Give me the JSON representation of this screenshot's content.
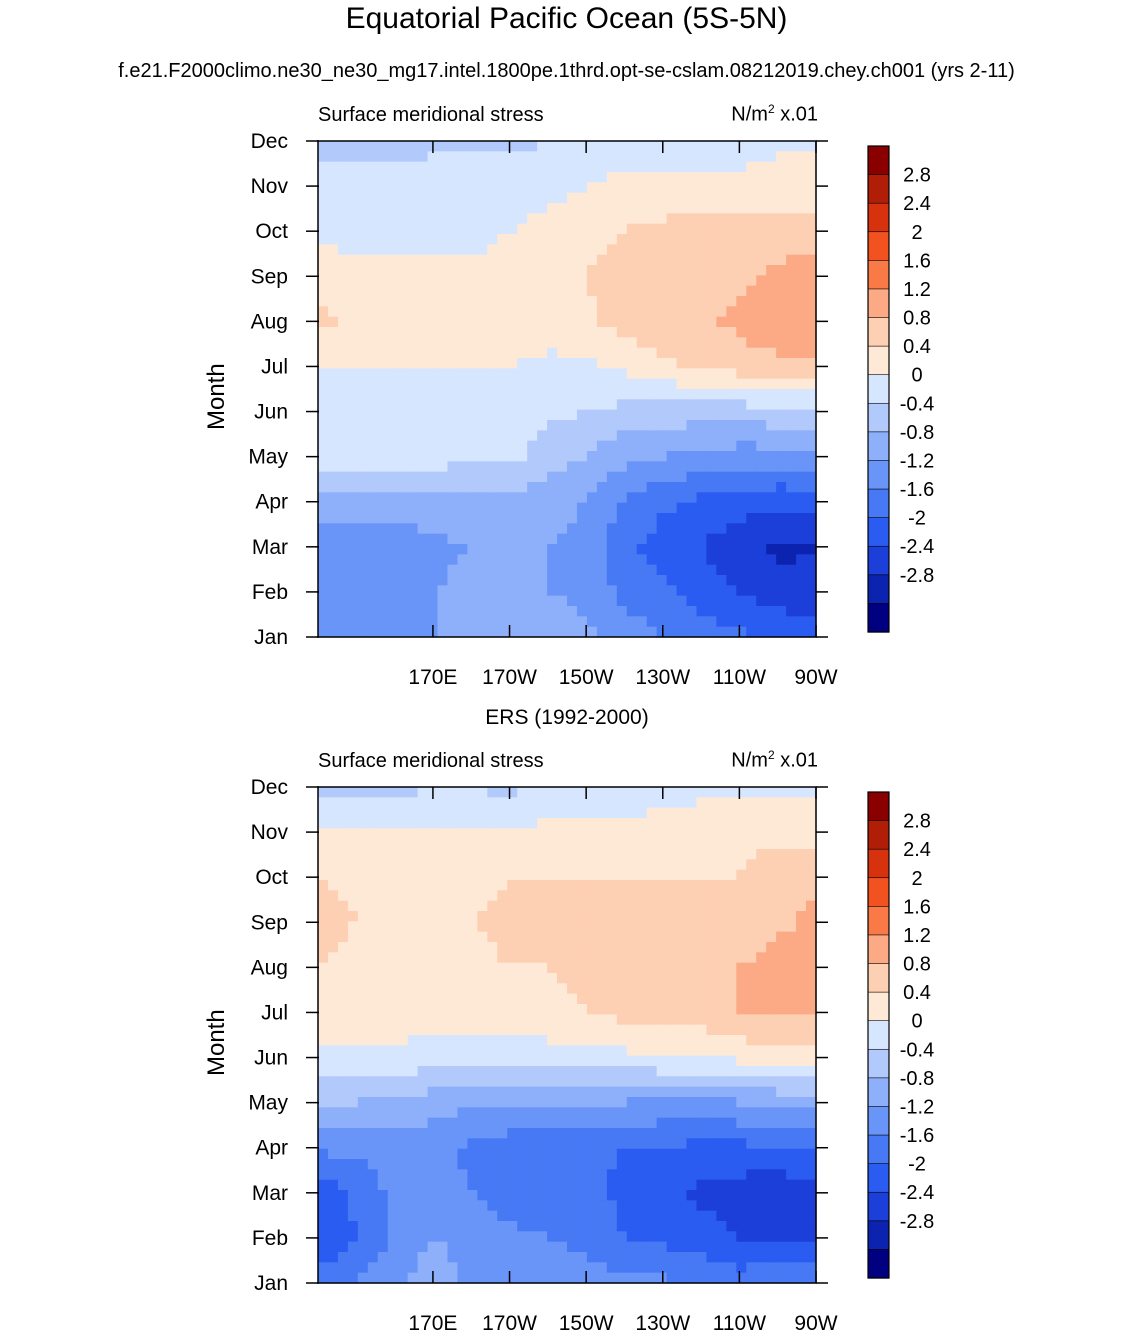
{
  "title": "Equatorial Pacific Ocean (5S-5N)",
  "subtitle": "f.e21.F2000climo.ne30_ne30_mg17.intel.1800pe.1thrd.opt-se-cslam.08212019.chey.ch001 (yrs 2-11)",
  "colors": {
    "levels": [
      "#000080",
      "#0c23b0",
      "#1b3fd8",
      "#2a5cf2",
      "#4779f5",
      "#6895f7",
      "#8eb0fa",
      "#b2c9fc",
      "#d6e6fe",
      "#fee9d7",
      "#fdcfb3",
      "#fca985",
      "#fa7a47",
      "#f2521f",
      "#d7320e",
      "#b01e08",
      "#8a0000"
    ],
    "levels_meaning": "fill colors from lowest to highest interval"
  },
  "chart_data": [
    {
      "type": "heatmap",
      "title": "",
      "panel_label": "Surface meridional stress",
      "units_text": "N/m",
      "units_sup": "2",
      "units_suffix": " x.01",
      "ylabel": "Month",
      "xlabel": "",
      "x_range_deg": [
        140,
        270
      ],
      "x_ticks": [
        "170E",
        "170W",
        "150W",
        "130W",
        "110W",
        "90W"
      ],
      "x_tick_values": [
        170,
        190,
        210,
        230,
        250,
        270
      ],
      "y_ticks": [
        "Jan",
        "Feb",
        "Mar",
        "Apr",
        "May",
        "Jun",
        "Jul",
        "Aug",
        "Sep",
        "Oct",
        "Nov",
        "Dec"
      ],
      "colorbar_labels": [
        "2.8",
        "2.4",
        "2",
        "1.6",
        "1.2",
        "0.8",
        "0.4",
        "0",
        "-0.4",
        "-0.8",
        "-1.2",
        "-1.6",
        "-2",
        "-2.4",
        "-2.8"
      ],
      "colorbar_levels": [
        -2.8,
        -2.4,
        -2,
        -1.6,
        -1.2,
        -0.8,
        -0.4,
        0,
        0.4,
        0.8,
        1.2,
        1.6,
        2,
        2.4,
        2.8
      ],
      "grid_columns_deg": [
        140,
        150,
        160,
        170,
        180,
        190,
        200,
        210,
        220,
        230,
        240,
        250,
        260,
        270
      ],
      "values": [
        [
          -1.0,
          -1.0,
          -0.9,
          -0.8,
          -0.7,
          -0.7,
          -0.6,
          -0.7,
          -1.0,
          -1.2,
          -1.4,
          -1.5,
          -1.7,
          -1.8
        ],
        [
          -1.0,
          -1.0,
          -0.9,
          -0.8,
          -0.7,
          -0.7,
          -0.8,
          -0.9,
          -1.3,
          -1.5,
          -1.8,
          -2.0,
          -2.2,
          -2.3
        ],
        [
          -1.0,
          -1.1,
          -1.0,
          -0.9,
          -0.8,
          -0.8,
          -0.8,
          -1.0,
          -1.5,
          -1.8,
          -2.0,
          -2.3,
          -2.5,
          -2.4
        ],
        [
          -0.6,
          -0.6,
          -0.6,
          -0.6,
          -0.5,
          -0.5,
          -0.6,
          -0.8,
          -1.2,
          -1.5,
          -1.7,
          -1.8,
          -1.9,
          -1.8
        ],
        [
          0.2,
          0.2,
          0.2,
          0.2,
          0.1,
          0.1,
          -0.2,
          -0.4,
          -0.7,
          -0.8,
          -0.9,
          -1.0,
          -1.0,
          -1.0
        ],
        [
          0.4,
          0.3,
          0.3,
          0.2,
          0.2,
          0.2,
          0.1,
          0.0,
          -0.1,
          -0.2,
          -0.2,
          -0.2,
          -0.1,
          -0.1
        ],
        [
          0.4,
          0.4,
          0.4,
          0.4,
          0.4,
          0.4,
          0.3,
          0.3,
          0.5,
          0.7,
          0.9,
          1.0,
          1.1,
          1.1
        ],
        [
          0.9,
          0.7,
          0.7,
          0.6,
          0.6,
          0.6,
          0.6,
          0.7,
          1.0,
          1.1,
          1.1,
          1.3,
          1.5,
          1.5
        ],
        [
          0.6,
          0.5,
          0.5,
          0.5,
          0.5,
          0.5,
          0.6,
          0.8,
          1.1,
          1.0,
          1.0,
          1.1,
          1.3,
          1.4
        ],
        [
          0.3,
          0.3,
          0.3,
          0.3,
          0.3,
          0.4,
          0.5,
          0.6,
          0.8,
          0.9,
          1.0,
          1.0,
          1.0,
          0.9
        ],
        [
          0.2,
          0.2,
          0.2,
          0.2,
          0.2,
          0.2,
          0.3,
          0.4,
          0.5,
          0.5,
          0.5,
          0.5,
          0.6,
          0.6
        ],
        [
          -0.2,
          -0.2,
          -0.2,
          -0.1,
          -0.1,
          -0.1,
          0.0,
          0.1,
          0.2,
          0.2,
          0.2,
          0.2,
          0.3,
          0.3
        ]
      ]
    },
    {
      "type": "heatmap",
      "title": "ERS (1992-2000)",
      "panel_label": "Surface meridional stress",
      "units_text": "N/m",
      "units_sup": "2",
      "units_suffix": " x.01",
      "ylabel": "Month",
      "xlabel": "",
      "x_range_deg": [
        140,
        270
      ],
      "x_ticks": [
        "170E",
        "170W",
        "150W",
        "130W",
        "110W",
        "90W"
      ],
      "x_tick_values": [
        170,
        190,
        210,
        230,
        250,
        270
      ],
      "y_ticks": [
        "Jan",
        "Feb",
        "Mar",
        "Apr",
        "May",
        "Jun",
        "Jul",
        "Aug",
        "Sep",
        "Oct",
        "Nov",
        "Dec"
      ],
      "colorbar_labels": [
        "2.8",
        "2.4",
        "2",
        "1.6",
        "1.2",
        "0.8",
        "0.4",
        "0",
        "-0.4",
        "-0.8",
        "-1.2",
        "-1.6",
        "-2",
        "-2.4",
        "-2.8"
      ],
      "colorbar_levels": [
        -2.8,
        -2.4,
        -2,
        -1.6,
        -1.2,
        -0.8,
        -0.4,
        0,
        0.4,
        0.8,
        1.2,
        1.6,
        2,
        2.4,
        2.8
      ],
      "grid_columns_deg": [
        140,
        150,
        160,
        170,
        180,
        190,
        200,
        210,
        220,
        230,
        240,
        250,
        260,
        270
      ],
      "values": [
        [
          -1.5,
          -1.2,
          -0.9,
          -0.6,
          -0.9,
          -1.0,
          -0.9,
          -1.0,
          -1.1,
          -1.1,
          -1.3,
          -1.4,
          -1.3,
          -1.2
        ],
        [
          -1.9,
          -1.6,
          -1.1,
          -0.8,
          -0.9,
          -1.1,
          -1.2,
          -1.3,
          -1.6,
          -1.7,
          -1.8,
          -2.0,
          -2.1,
          -2.1
        ],
        [
          -2.0,
          -1.5,
          -1.1,
          -1.0,
          -1.2,
          -1.4,
          -1.4,
          -1.5,
          -1.7,
          -1.9,
          -2.1,
          -2.2,
          -2.3,
          -2.2
        ],
        [
          -1.1,
          -1.1,
          -1.0,
          -1.1,
          -1.3,
          -1.4,
          -1.4,
          -1.5,
          -1.6,
          -1.6,
          -1.7,
          -1.7,
          -1.6,
          -1.5
        ],
        [
          -0.3,
          -0.4,
          -0.5,
          -0.6,
          -0.7,
          -0.8,
          -0.8,
          -0.7,
          -0.8,
          -0.9,
          -0.9,
          -0.8,
          -0.7,
          -0.6
        ],
        [
          0.3,
          0.3,
          0.3,
          0.2,
          0.2,
          0.2,
          0.2,
          0.3,
          0.3,
          0.4,
          0.4,
          0.5,
          0.6,
          0.6
        ],
        [
          0.7,
          0.6,
          0.6,
          0.6,
          0.6,
          0.6,
          0.7,
          0.8,
          0.9,
          0.9,
          1.0,
          1.2,
          1.3,
          1.3
        ],
        [
          0.8,
          0.6,
          0.6,
          0.6,
          0.7,
          0.8,
          0.8,
          0.9,
          1.0,
          1.0,
          1.0,
          1.2,
          1.4,
          1.4
        ],
        [
          1.0,
          0.8,
          0.6,
          0.7,
          0.8,
          0.9,
          0.9,
          0.9,
          0.9,
          0.8,
          0.8,
          0.9,
          1.1,
          1.3
        ],
        [
          0.8,
          0.7,
          0.6,
          0.7,
          0.7,
          0.8,
          0.8,
          0.8,
          0.8,
          0.8,
          0.8,
          0.8,
          1.0,
          1.1
        ],
        [
          0.4,
          0.4,
          0.4,
          0.4,
          0.4,
          0.4,
          0.5,
          0.5,
          0.5,
          0.6,
          0.6,
          0.7,
          0.7,
          0.6
        ],
        [
          -0.2,
          -0.1,
          -0.1,
          0.0,
          0.0,
          -0.1,
          0.1,
          0.1,
          0.2,
          0.2,
          0.3,
          0.3,
          0.3,
          0.3
        ]
      ]
    }
  ]
}
